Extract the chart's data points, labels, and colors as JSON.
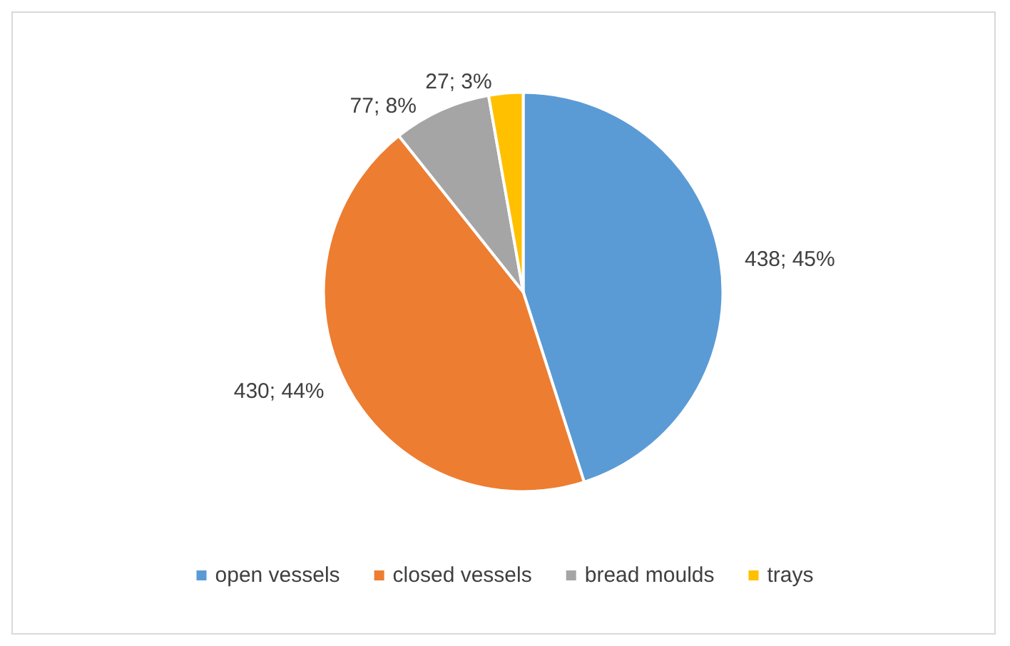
{
  "chart_data": {
    "type": "pie",
    "categories": [
      "open vessels",
      "closed vessels",
      "bread moulds",
      "trays"
    ],
    "values": [
      438,
      430,
      77,
      27
    ],
    "colors": [
      "#5b9bd5",
      "#ed7d31",
      "#a5a5a5",
      "#ffc000"
    ],
    "value_labels": [
      "438; 45%",
      "430; 44%",
      "77; 8%",
      "27; 3%"
    ],
    "legend": "bottom"
  }
}
